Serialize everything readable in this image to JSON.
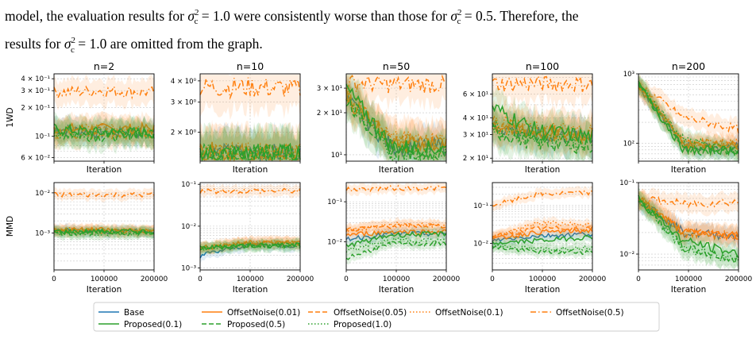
{
  "paragraph": {
    "line1_a": "model, the evaluation results for ",
    "line1_b": " were consistently worse than those for ",
    "line1_c": ". Therefore, the",
    "line2_b": " are omitted from the graph.",
    "line2_a": "results for ",
    "sym_sigma": "σ",
    "sym_sub": "c",
    "sym_sup": "2",
    "val_a": " = 1.0",
    "val_b": " = 0.5"
  },
  "chart_data": {
    "type": "line",
    "xlabel": "Iteration",
    "x": [
      0,
      100000,
      200000
    ],
    "xticks": [
      "0",
      "100000",
      "200000"
    ],
    "row_labels": [
      "1WD",
      "MMD"
    ],
    "columns": [
      "n=2",
      "n=10",
      "n=50",
      "n=100",
      "n=200"
    ],
    "legend": [
      {
        "name": "Base",
        "color": "#1f77b4",
        "dash": "solid"
      },
      {
        "name": "OffsetNoise(0.01)",
        "color": "#ff7f0e",
        "dash": "solid"
      },
      {
        "name": "OffsetNoise(0.05)",
        "color": "#ff7f0e",
        "dash": "dashed"
      },
      {
        "name": "OffsetNoise(0.1)",
        "color": "#ff7f0e",
        "dash": "dotted"
      },
      {
        "name": "OffsetNoise(0.5)",
        "color": "#ff7f0e",
        "dash": "dashdot"
      },
      {
        "name": "Proposed(0.1)",
        "color": "#2ca02c",
        "dash": "solid"
      },
      {
        "name": "Proposed(0.5)",
        "color": "#2ca02c",
        "dash": "dashed"
      },
      {
        "name": "Proposed(1.0)",
        "color": "#2ca02c",
        "dash": "dotted"
      }
    ],
    "panels": [
      {
        "row": 0,
        "col": 0,
        "title": "n=2",
        "yscale": "log",
        "ylim": [
          0.055,
          0.45
        ],
        "yticks": [
          {
            "v": 0.06,
            "label": "6 × 10⁻²"
          },
          {
            "v": 0.1,
            "label": "10⁻¹"
          },
          {
            "v": 0.2,
            "label": "2 × 10⁻¹"
          },
          {
            "v": 0.3,
            "label": "3 × 10⁻¹"
          },
          {
            "v": 0.4,
            "label": "4 × 10⁻¹"
          }
        ],
        "series": {
          "Base": [
            0.12,
            0.11,
            0.11
          ],
          "OffsetNoise(0.01)": [
            0.12,
            0.12,
            0.12
          ],
          "OffsetNoise(0.05)": [
            0.11,
            0.11,
            0.11
          ],
          "OffsetNoise(0.1)": [
            0.11,
            0.12,
            0.11
          ],
          "OffsetNoise(0.5)": [
            0.29,
            0.3,
            0.29
          ],
          "Proposed(0.1)": [
            0.12,
            0.11,
            0.11
          ],
          "Proposed(0.5)": [
            0.11,
            0.1,
            0.11
          ],
          "Proposed(1.0)": [
            0.11,
            0.11,
            0.11
          ]
        }
      },
      {
        "row": 0,
        "col": 1,
        "title": "n=10",
        "yscale": "log",
        "ylim": [
          1.35,
          4.4
        ],
        "yticks": [
          {
            "v": 2,
            "label": "2 × 10⁰"
          },
          {
            "v": 3,
            "label": "3 × 10⁰"
          },
          {
            "v": 4,
            "label": "4 × 10⁰"
          }
        ],
        "series": {
          "Base": [
            1.5,
            1.5,
            1.5
          ],
          "OffsetNoise(0.01)": [
            1.55,
            1.5,
            1.5
          ],
          "OffsetNoise(0.05)": [
            1.55,
            1.5,
            1.5
          ],
          "OffsetNoise(0.1)": [
            1.55,
            1.52,
            1.5
          ],
          "OffsetNoise(0.5)": [
            3.7,
            3.7,
            3.6
          ],
          "Proposed(0.1)": [
            1.5,
            1.5,
            1.5
          ],
          "Proposed(0.5)": [
            1.5,
            1.5,
            1.5
          ],
          "Proposed(1.0)": [
            1.5,
            1.5,
            1.5
          ]
        }
      },
      {
        "row": 0,
        "col": 2,
        "title": "n=50",
        "yscale": "log",
        "ylim": [
          9,
          38
        ],
        "yticks": [
          {
            "v": 10,
            "label": "10¹"
          },
          {
            "v": 20,
            "label": "2 × 10¹"
          },
          {
            "v": 30,
            "label": "3 × 10¹"
          }
        ],
        "series": {
          "Base": [
            25,
            11.5,
            11.5
          ],
          "OffsetNoise(0.01)": [
            26,
            12,
            12
          ],
          "OffsetNoise(0.05)": [
            27,
            12.5,
            12.5
          ],
          "OffsetNoise(0.1)": [
            27,
            13,
            13
          ],
          "OffsetNoise(0.5)": [
            33,
            32,
            32
          ],
          "Proposed(0.1)": [
            30,
            11.5,
            11
          ],
          "Proposed(0.5)": [
            25,
            10.5,
            10
          ],
          "Proposed(1.0)": [
            26,
            10.5,
            10.5
          ]
        }
      },
      {
        "row": 0,
        "col": 3,
        "title": "n=100",
        "yscale": "log",
        "ylim": [
          19,
          85
        ],
        "yticks": [
          {
            "v": 20,
            "label": "2 × 10¹"
          },
          {
            "v": 30,
            "label": "3 × 10¹"
          },
          {
            "v": 40,
            "label": "4 × 10¹"
          },
          {
            "v": 60,
            "label": "6 × 10¹"
          }
        ],
        "series": {
          "Base": [
            35,
            30,
            29
          ],
          "OffsetNoise(0.01)": [
            36,
            31,
            30
          ],
          "OffsetNoise(0.05)": [
            36,
            31,
            30
          ],
          "OffsetNoise(0.1)": [
            38,
            33,
            32
          ],
          "OffsetNoise(0.5)": [
            72,
            72,
            72
          ],
          "Proposed(0.1)": [
            48,
            32,
            29
          ],
          "Proposed(0.5)": [
            32,
            26,
            25
          ],
          "Proposed(1.0)": [
            34,
            27,
            26
          ]
        }
      },
      {
        "row": 0,
        "col": 4,
        "title": "n=200",
        "yscale": "log",
        "ylim": [
          55,
          1000
        ],
        "yticks": [
          {
            "v": 100,
            "label": "10²"
          },
          {
            "v": 1000,
            "label": "10³"
          }
        ],
        "series": {
          "Base": [
            700,
            90,
            90
          ],
          "OffsetNoise(0.01)": [
            700,
            95,
            95
          ],
          "OffsetNoise(0.05)": [
            700,
            100,
            100
          ],
          "OffsetNoise(0.1)": [
            700,
            100,
            100
          ],
          "OffsetNoise(0.5)": [
            700,
            230,
            160
          ],
          "Proposed(0.1)": [
            700,
            80,
            80
          ],
          "Proposed(0.5)": [
            700,
            80,
            75
          ],
          "Proposed(1.0)": [
            700,
            110,
            75
          ]
        }
      },
      {
        "row": 1,
        "col": 0,
        "title": "",
        "yscale": "log",
        "ylim": [
          0.00012,
          0.018
        ],
        "yticks": [
          {
            "v": 0.001,
            "label": "10⁻³"
          },
          {
            "v": 0.01,
            "label": "10⁻²"
          }
        ],
        "series": {
          "Base": [
            0.0012,
            0.0011,
            0.0011
          ],
          "OffsetNoise(0.01)": [
            0.0012,
            0.0012,
            0.0011
          ],
          "OffsetNoise(0.05)": [
            0.0012,
            0.0011,
            0.0011
          ],
          "OffsetNoise(0.1)": [
            0.0012,
            0.0012,
            0.0011
          ],
          "OffsetNoise(0.5)": [
            0.009,
            0.009,
            0.009
          ],
          "Proposed(0.1)": [
            0.0011,
            0.0011,
            0.0011
          ],
          "Proposed(0.5)": [
            0.001,
            0.001,
            0.001
          ],
          "Proposed(1.0)": [
            0.001,
            0.001,
            0.001
          ]
        }
      },
      {
        "row": 1,
        "col": 1,
        "title": "",
        "yscale": "log",
        "ylim": [
          0.0009,
          0.11
        ],
        "yticks": [
          {
            "v": 0.001,
            "label": "10⁻³"
          },
          {
            "v": 0.01,
            "label": "10⁻²"
          },
          {
            "v": 0.1,
            "label": "10⁻¹"
          }
        ],
        "series": {
          "Base": [
            0.002,
            0.0035,
            0.0035
          ],
          "OffsetNoise(0.01)": [
            0.003,
            0.004,
            0.004
          ],
          "OffsetNoise(0.05)": [
            0.003,
            0.004,
            0.004
          ],
          "OffsetNoise(0.1)": [
            0.003,
            0.004,
            0.004
          ],
          "OffsetNoise(0.5)": [
            0.07,
            0.07,
            0.07
          ],
          "Proposed(0.1)": [
            0.003,
            0.0035,
            0.0035
          ],
          "Proposed(0.5)": [
            0.003,
            0.0035,
            0.0035
          ],
          "Proposed(1.0)": [
            0.003,
            0.0035,
            0.0035
          ]
        }
      },
      {
        "row": 1,
        "col": 2,
        "title": "",
        "yscale": "log",
        "ylim": [
          0.002,
          0.3
        ],
        "yticks": [
          {
            "v": 0.01,
            "label": "10⁻²"
          },
          {
            "v": 0.1,
            "label": "10⁻¹"
          }
        ],
        "series": {
          "Base": [
            0.012,
            0.016,
            0.016
          ],
          "OffsetNoise(0.01)": [
            0.015,
            0.018,
            0.018
          ],
          "OffsetNoise(0.05)": [
            0.02,
            0.025,
            0.025
          ],
          "OffsetNoise(0.1)": [
            0.02,
            0.027,
            0.027
          ],
          "OffsetNoise(0.5)": [
            0.2,
            0.22,
            0.22
          ],
          "Proposed(0.1)": [
            0.008,
            0.015,
            0.016
          ],
          "Proposed(0.5)": [
            0.004,
            0.009,
            0.009
          ],
          "Proposed(1.0)": [
            0.006,
            0.011,
            0.011
          ]
        }
      },
      {
        "row": 1,
        "col": 3,
        "title": "",
        "yscale": "log",
        "ylim": [
          0.002,
          0.4
        ],
        "yticks": [
          {
            "v": 0.01,
            "label": "10⁻²"
          },
          {
            "v": 0.1,
            "label": "10⁻¹"
          }
        ],
        "series": {
          "Base": [
            0.012,
            0.016,
            0.018
          ],
          "OffsetNoise(0.01)": [
            0.013,
            0.02,
            0.022
          ],
          "OffsetNoise(0.05)": [
            0.015,
            0.025,
            0.025
          ],
          "OffsetNoise(0.1)": [
            0.015,
            0.035,
            0.03
          ],
          "OffsetNoise(0.5)": [
            0.1,
            0.2,
            0.22
          ],
          "Proposed(0.1)": [
            0.01,
            0.012,
            0.015
          ],
          "Proposed(0.5)": [
            0.008,
            0.006,
            0.006
          ],
          "Proposed(1.0)": [
            0.009,
            0.007,
            0.008
          ]
        }
      },
      {
        "row": 1,
        "col": 4,
        "title": "",
        "yscale": "log",
        "ylim": [
          0.006,
          0.1
        ],
        "yticks": [
          {
            "v": 0.01,
            "label": "10⁻²"
          },
          {
            "v": 0.1,
            "label": "10⁻¹"
          }
        ],
        "series": {
          "Base": [
            0.06,
            0.02,
            0.018
          ],
          "OffsetNoise(0.01)": [
            0.06,
            0.02,
            0.018
          ],
          "OffsetNoise(0.05)": [
            0.06,
            0.02,
            0.018
          ],
          "OffsetNoise(0.1)": [
            0.06,
            0.02,
            0.018
          ],
          "OffsetNoise(0.5)": [
            0.06,
            0.05,
            0.055
          ],
          "Proposed(0.1)": [
            0.06,
            0.015,
            0.01
          ],
          "Proposed(0.5)": [
            0.06,
            0.012,
            0.008
          ],
          "Proposed(1.0)": [
            0.06,
            0.012,
            0.008
          ]
        }
      }
    ]
  }
}
